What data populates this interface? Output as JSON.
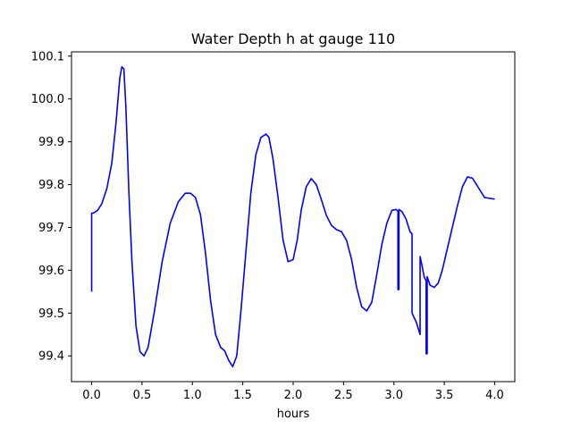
{
  "chart_data": {
    "type": "line",
    "title": "Water Depth h at gauge 110",
    "xlabel": "hours",
    "ylabel": "",
    "xlim": [
      -0.2,
      4.2
    ],
    "ylim": [
      99.34,
      100.11
    ],
    "xticks": [
      0.0,
      0.5,
      1.0,
      1.5,
      2.0,
      2.5,
      3.0,
      3.5,
      4.0
    ],
    "xtick_labels": [
      "0.0",
      "0.5",
      "1.0",
      "1.5",
      "2.0",
      "2.5",
      "3.0",
      "3.5",
      "4.0"
    ],
    "yticks": [
      99.4,
      99.5,
      99.6,
      99.7,
      99.8,
      99.9,
      100.0,
      100.1
    ],
    "ytick_labels": [
      "99.4",
      "99.5",
      "99.6",
      "99.7",
      "99.8",
      "99.9",
      "100.0",
      "100.1"
    ],
    "grid": false,
    "legend": "none",
    "series": [
      {
        "color": "#0000ff",
        "x": [
          0.0,
          0.0,
          0.02,
          0.06,
          0.1,
          0.15,
          0.2,
          0.24,
          0.28,
          0.3,
          0.32,
          0.34,
          0.37,
          0.4,
          0.44,
          0.48,
          0.52,
          0.56,
          0.62,
          0.7,
          0.78,
          0.86,
          0.93,
          0.98,
          1.03,
          1.08,
          1.13,
          1.18,
          1.23,
          1.28,
          1.32,
          1.36,
          1.4,
          1.44,
          1.48,
          1.53,
          1.58,
          1.63,
          1.68,
          1.73,
          1.76,
          1.8,
          1.85,
          1.9,
          1.95,
          2.0,
          2.04,
          2.08,
          2.13,
          2.18,
          2.23,
          2.28,
          2.33,
          2.38,
          2.43,
          2.48,
          2.53,
          2.58,
          2.63,
          2.68,
          2.73,
          2.78,
          2.83,
          2.88,
          2.93,
          2.98,
          3.02,
          3.04,
          3.04,
          3.05,
          3.05,
          3.08,
          3.12,
          3.16,
          3.18,
          3.18,
          3.22,
          3.26,
          3.26,
          3.28,
          3.3,
          3.32,
          3.32,
          3.33,
          3.33,
          3.36,
          3.4,
          3.44,
          3.48,
          3.53,
          3.58,
          3.63,
          3.68,
          3.73,
          3.78,
          3.82,
          3.86,
          3.9,
          3.95,
          4.0
        ],
        "y": [
          99.55,
          99.733,
          99.734,
          99.74,
          99.755,
          99.79,
          99.85,
          99.94,
          100.05,
          100.075,
          100.07,
          99.98,
          99.78,
          99.62,
          99.47,
          99.41,
          99.4,
          99.42,
          99.5,
          99.62,
          99.71,
          99.76,
          99.78,
          99.78,
          99.77,
          99.73,
          99.64,
          99.53,
          99.45,
          99.42,
          99.412,
          99.39,
          99.375,
          99.4,
          99.5,
          99.64,
          99.78,
          99.87,
          99.91,
          99.918,
          99.91,
          99.86,
          99.77,
          99.67,
          99.62,
          99.625,
          99.67,
          99.74,
          99.795,
          99.814,
          99.8,
          99.765,
          99.728,
          99.705,
          99.695,
          99.69,
          99.67,
          99.625,
          99.56,
          99.515,
          99.505,
          99.525,
          99.59,
          99.66,
          99.71,
          99.74,
          99.742,
          99.738,
          99.555,
          99.555,
          99.742,
          99.737,
          99.72,
          99.69,
          99.685,
          99.5,
          99.48,
          99.45,
          99.632,
          99.61,
          99.585,
          99.575,
          99.405,
          99.405,
          99.585,
          99.565,
          99.56,
          99.57,
          99.6,
          99.65,
          99.7,
          99.75,
          99.795,
          99.818,
          99.815,
          99.8,
          99.785,
          99.77,
          99.768,
          99.766
        ]
      }
    ]
  }
}
